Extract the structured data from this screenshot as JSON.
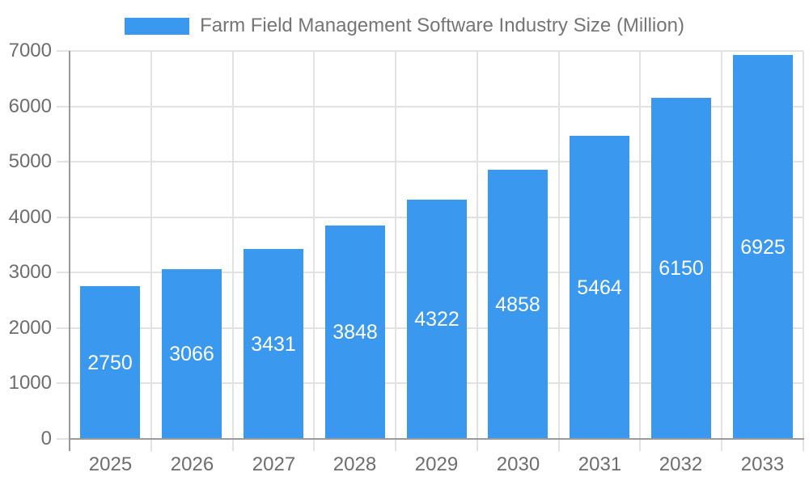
{
  "legend": {
    "label": "Farm Field Management Software Industry Size (Million)"
  },
  "chart_data": {
    "type": "bar",
    "title": "Farm Field Management Software Industry Size (Million)",
    "categories": [
      "2025",
      "2026",
      "2027",
      "2028",
      "2029",
      "2030",
      "2031",
      "2032",
      "2033"
    ],
    "values": [
      2750,
      3066,
      3431,
      3848,
      4322,
      4858,
      5464,
      6150,
      6925
    ],
    "series_name": "Farm Field Management Software Industry Size (Million)",
    "xlabel": "",
    "ylabel": "",
    "ylim": [
      0,
      7000
    ],
    "yticks": [
      0,
      1000,
      2000,
      3000,
      4000,
      5000,
      6000,
      7000
    ],
    "grid": true,
    "legend_position": "top",
    "bar_label_position": "inside-center",
    "colors": {
      "bar": "#3A99EE",
      "gridline": "#E2E2E2",
      "axis": "#9A9A9A",
      "tick_label": "#6E6E6E",
      "legend_text": "#757575",
      "bar_label": "#FFFFFF",
      "background": "#FFFFFF"
    }
  }
}
